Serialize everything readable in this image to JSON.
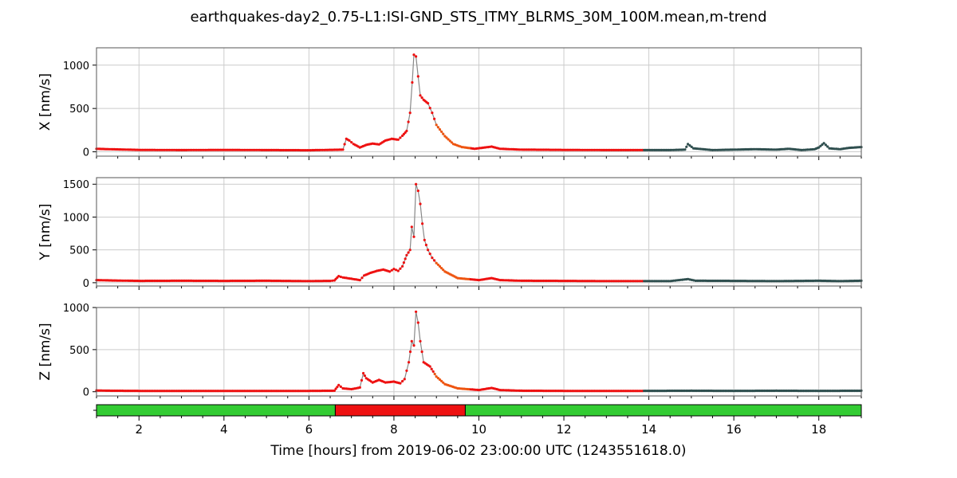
{
  "chart_data": {
    "type": "line",
    "title": "earthquakes-day2_0.75-L1:ISI-GND_STS_ITMY_BLRMS_30M_100M.mean,m-trend",
    "xlabel": "Time [hours] from 2019-06-02 23:00:00 UTC (1243551618.0)",
    "xlim": [
      1,
      19
    ],
    "xticks": [
      2,
      4,
      6,
      8,
      10,
      12,
      14,
      16,
      18
    ],
    "colors": {
      "line": "#888888",
      "segment_1": "#ee1111",
      "segment_2": "#ee5511",
      "segment_3": "#2f4f4f",
      "state_ok": "#33cc33",
      "state_bad": "#ee1111",
      "grid": "#cccccc"
    },
    "color_segments": [
      {
        "from": 1.0,
        "to": 8.95,
        "color_key": "segment_1"
      },
      {
        "from": 8.95,
        "to": 9.8,
        "color_key": "segment_2"
      },
      {
        "from": 9.8,
        "to": 13.85,
        "color_key": "segment_1"
      },
      {
        "from": 13.85,
        "to": 19.0,
        "color_key": "segment_3"
      }
    ],
    "panels": [
      {
        "ylabel": "X [nm/s]",
        "ylim": [
          -50,
          1200
        ],
        "yticks": [
          0,
          500,
          1000
        ],
        "series": [
          {
            "x": 1.0,
            "y": 35
          },
          {
            "x": 1.3,
            "y": 30
          },
          {
            "x": 2.0,
            "y": 22
          },
          {
            "x": 3.0,
            "y": 20
          },
          {
            "x": 4.0,
            "y": 22
          },
          {
            "x": 5.0,
            "y": 20
          },
          {
            "x": 6.0,
            "y": 18
          },
          {
            "x": 6.8,
            "y": 25
          },
          {
            "x": 6.88,
            "y": 150
          },
          {
            "x": 6.95,
            "y": 130
          },
          {
            "x": 7.05,
            "y": 90
          },
          {
            "x": 7.2,
            "y": 50
          },
          {
            "x": 7.35,
            "y": 80
          },
          {
            "x": 7.5,
            "y": 95
          },
          {
            "x": 7.65,
            "y": 85
          },
          {
            "x": 7.8,
            "y": 130
          },
          {
            "x": 7.95,
            "y": 150
          },
          {
            "x": 8.1,
            "y": 140
          },
          {
            "x": 8.2,
            "y": 185
          },
          {
            "x": 8.3,
            "y": 240
          },
          {
            "x": 8.38,
            "y": 450
          },
          {
            "x": 8.43,
            "y": 800
          },
          {
            "x": 8.47,
            "y": 1120
          },
          {
            "x": 8.52,
            "y": 1100
          },
          {
            "x": 8.57,
            "y": 870
          },
          {
            "x": 8.62,
            "y": 650
          },
          {
            "x": 8.7,
            "y": 600
          },
          {
            "x": 8.8,
            "y": 560
          },
          {
            "x": 8.9,
            "y": 450
          },
          {
            "x": 9.0,
            "y": 310
          },
          {
            "x": 9.2,
            "y": 180
          },
          {
            "x": 9.4,
            "y": 90
          },
          {
            "x": 9.6,
            "y": 55
          },
          {
            "x": 9.9,
            "y": 35
          },
          {
            "x": 10.3,
            "y": 60
          },
          {
            "x": 10.5,
            "y": 35
          },
          {
            "x": 11.0,
            "y": 25
          },
          {
            "x": 12.0,
            "y": 22
          },
          {
            "x": 13.0,
            "y": 20
          },
          {
            "x": 13.85,
            "y": 20
          },
          {
            "x": 14.5,
            "y": 20
          },
          {
            "x": 14.85,
            "y": 25
          },
          {
            "x": 14.92,
            "y": 90
          },
          {
            "x": 15.05,
            "y": 40
          },
          {
            "x": 15.5,
            "y": 20
          },
          {
            "x": 16.0,
            "y": 25
          },
          {
            "x": 16.5,
            "y": 30
          },
          {
            "x": 17.0,
            "y": 25
          },
          {
            "x": 17.3,
            "y": 35
          },
          {
            "x": 17.6,
            "y": 20
          },
          {
            "x": 17.9,
            "y": 30
          },
          {
            "x": 18.0,
            "y": 50
          },
          {
            "x": 18.12,
            "y": 100
          },
          {
            "x": 18.25,
            "y": 40
          },
          {
            "x": 18.5,
            "y": 30
          },
          {
            "x": 18.7,
            "y": 45
          },
          {
            "x": 19.0,
            "y": 55
          }
        ]
      },
      {
        "ylabel": "Y [nm/s]",
        "ylim": [
          -50,
          1600
        ],
        "yticks": [
          0,
          500,
          1000,
          1500
        ],
        "series": [
          {
            "x": 1.0,
            "y": 40
          },
          {
            "x": 1.3,
            "y": 35
          },
          {
            "x": 2.0,
            "y": 28
          },
          {
            "x": 3.0,
            "y": 30
          },
          {
            "x": 4.0,
            "y": 28
          },
          {
            "x": 5.0,
            "y": 30
          },
          {
            "x": 6.0,
            "y": 25
          },
          {
            "x": 6.5,
            "y": 28
          },
          {
            "x": 6.6,
            "y": 35
          },
          {
            "x": 6.7,
            "y": 100
          },
          {
            "x": 6.8,
            "y": 80
          },
          {
            "x": 7.0,
            "y": 60
          },
          {
            "x": 7.2,
            "y": 40
          },
          {
            "x": 7.3,
            "y": 110
          },
          {
            "x": 7.45,
            "y": 150
          },
          {
            "x": 7.6,
            "y": 180
          },
          {
            "x": 7.75,
            "y": 200
          },
          {
            "x": 7.9,
            "y": 170
          },
          {
            "x": 8.0,
            "y": 210
          },
          {
            "x": 8.1,
            "y": 180
          },
          {
            "x": 8.2,
            "y": 250
          },
          {
            "x": 8.3,
            "y": 420
          },
          {
            "x": 8.38,
            "y": 500
          },
          {
            "x": 8.42,
            "y": 850
          },
          {
            "x": 8.47,
            "y": 700
          },
          {
            "x": 8.52,
            "y": 1500
          },
          {
            "x": 8.57,
            "y": 1400
          },
          {
            "x": 8.62,
            "y": 1200
          },
          {
            "x": 8.67,
            "y": 900
          },
          {
            "x": 8.72,
            "y": 650
          },
          {
            "x": 8.8,
            "y": 500
          },
          {
            "x": 8.9,
            "y": 380
          },
          {
            "x": 9.0,
            "y": 300
          },
          {
            "x": 9.2,
            "y": 170
          },
          {
            "x": 9.5,
            "y": 70
          },
          {
            "x": 10.0,
            "y": 40
          },
          {
            "x": 10.3,
            "y": 70
          },
          {
            "x": 10.5,
            "y": 40
          },
          {
            "x": 11.0,
            "y": 30
          },
          {
            "x": 12.0,
            "y": 28
          },
          {
            "x": 13.0,
            "y": 25
          },
          {
            "x": 13.85,
            "y": 25
          },
          {
            "x": 14.5,
            "y": 25
          },
          {
            "x": 14.92,
            "y": 55
          },
          {
            "x": 15.1,
            "y": 30
          },
          {
            "x": 16.0,
            "y": 28
          },
          {
            "x": 17.0,
            "y": 25
          },
          {
            "x": 18.0,
            "y": 30
          },
          {
            "x": 18.5,
            "y": 25
          },
          {
            "x": 19.0,
            "y": 30
          }
        ]
      },
      {
        "ylabel": "Z [nm/s]",
        "ylim": [
          -50,
          1000
        ],
        "yticks": [
          0,
          500,
          1000
        ],
        "series": [
          {
            "x": 1.0,
            "y": 15
          },
          {
            "x": 1.3,
            "y": 12
          },
          {
            "x": 2.0,
            "y": 10
          },
          {
            "x": 3.0,
            "y": 10
          },
          {
            "x": 4.0,
            "y": 10
          },
          {
            "x": 5.0,
            "y": 10
          },
          {
            "x": 6.0,
            "y": 10
          },
          {
            "x": 6.6,
            "y": 12
          },
          {
            "x": 6.7,
            "y": 80
          },
          {
            "x": 6.8,
            "y": 40
          },
          {
            "x": 7.0,
            "y": 30
          },
          {
            "x": 7.2,
            "y": 50
          },
          {
            "x": 7.28,
            "y": 220
          },
          {
            "x": 7.35,
            "y": 160
          },
          {
            "x": 7.5,
            "y": 110
          },
          {
            "x": 7.65,
            "y": 140
          },
          {
            "x": 7.8,
            "y": 110
          },
          {
            "x": 8.0,
            "y": 120
          },
          {
            "x": 8.15,
            "y": 100
          },
          {
            "x": 8.25,
            "y": 150
          },
          {
            "x": 8.35,
            "y": 350
          },
          {
            "x": 8.42,
            "y": 600
          },
          {
            "x": 8.47,
            "y": 550
          },
          {
            "x": 8.52,
            "y": 950
          },
          {
            "x": 8.57,
            "y": 820
          },
          {
            "x": 8.62,
            "y": 600
          },
          {
            "x": 8.7,
            "y": 350
          },
          {
            "x": 8.85,
            "y": 300
          },
          {
            "x": 9.0,
            "y": 180
          },
          {
            "x": 9.2,
            "y": 90
          },
          {
            "x": 9.5,
            "y": 40
          },
          {
            "x": 10.0,
            "y": 20
          },
          {
            "x": 10.3,
            "y": 45
          },
          {
            "x": 10.5,
            "y": 20
          },
          {
            "x": 11.0,
            "y": 12
          },
          {
            "x": 12.0,
            "y": 10
          },
          {
            "x": 13.0,
            "y": 10
          },
          {
            "x": 13.85,
            "y": 10
          },
          {
            "x": 15.0,
            "y": 12
          },
          {
            "x": 16.0,
            "y": 10
          },
          {
            "x": 17.0,
            "y": 12
          },
          {
            "x": 18.0,
            "y": 10
          },
          {
            "x": 19.0,
            "y": 12
          }
        ]
      }
    ],
    "state_bar": [
      {
        "from": 1.0,
        "to": 6.62,
        "state": "state_ok"
      },
      {
        "from": 6.62,
        "to": 9.68,
        "state": "state_bad"
      },
      {
        "from": 9.68,
        "to": 19.0,
        "state": "state_ok"
      }
    ]
  }
}
